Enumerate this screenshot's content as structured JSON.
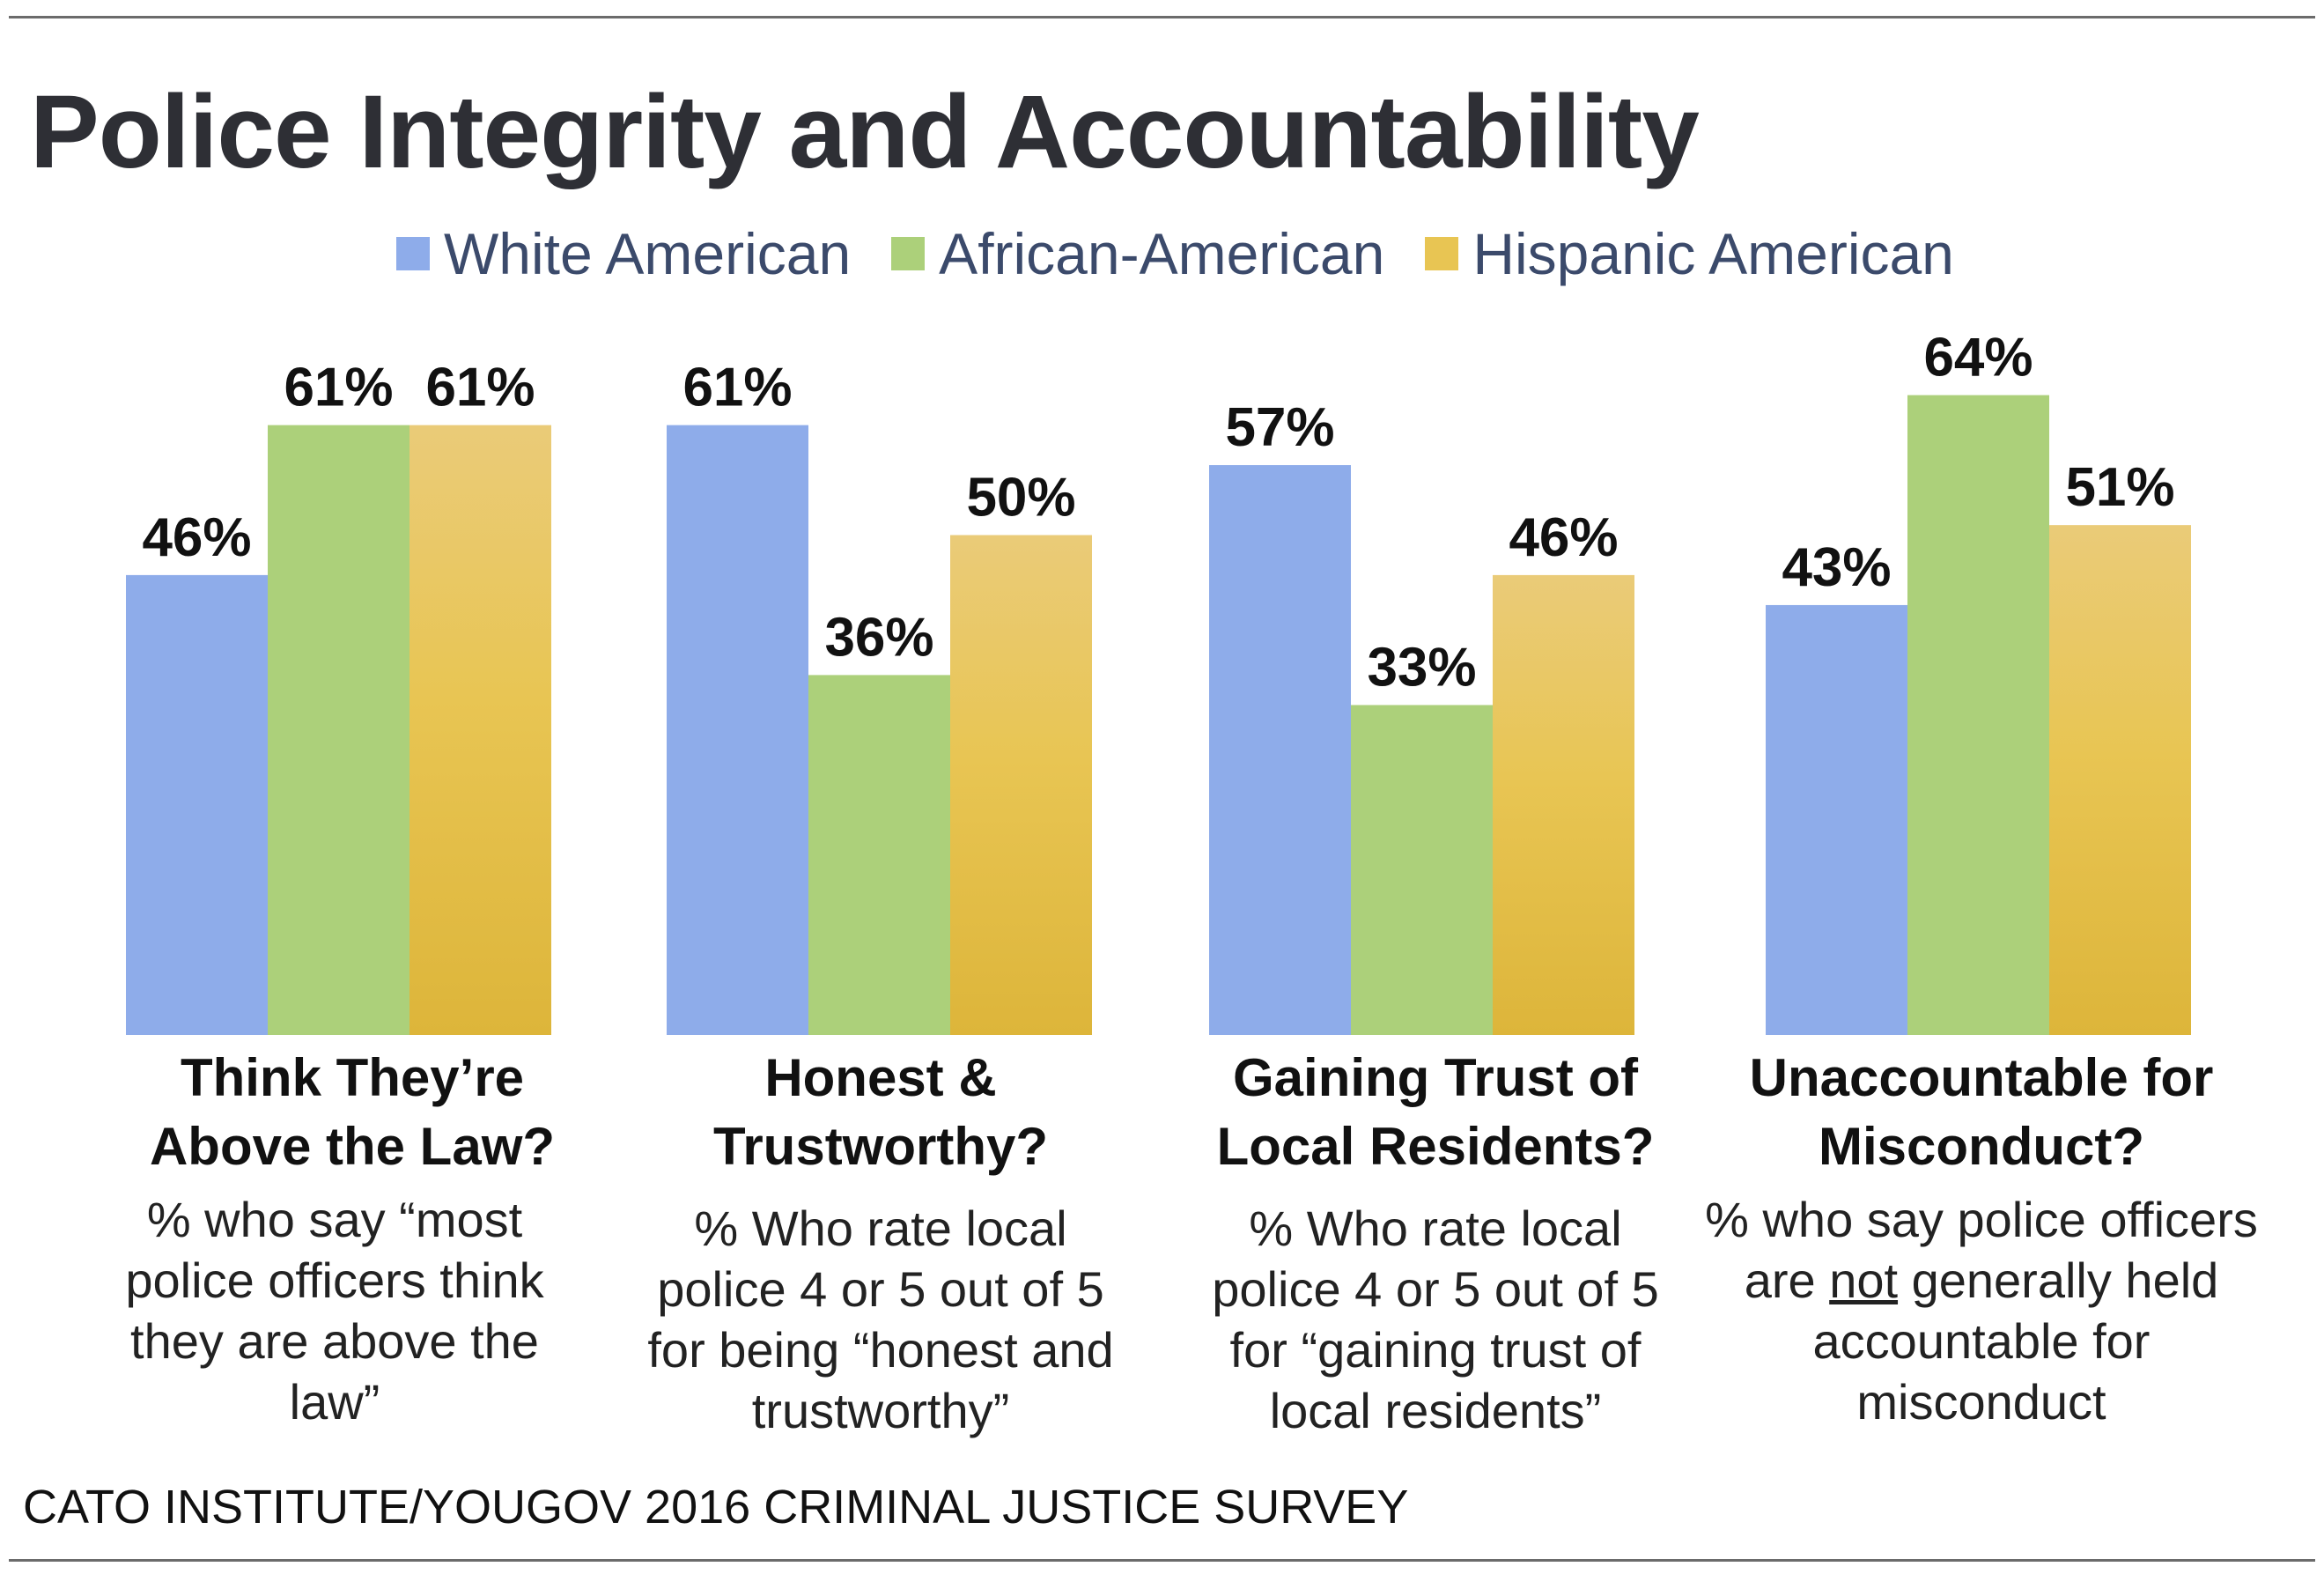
{
  "title": "Police Integrity and Accountability",
  "source": "CATO INSTITUTE/YOUGOV 2016 CRIMINAL JUSTICE SURVEY",
  "colors": {
    "white_american": "#8eacea",
    "african_american": "#acd07a",
    "hispanic_american": "#e8c553",
    "hispanic_gradient_top": "#eacb78",
    "hispanic_gradient_bottom": "#ddb53a"
  },
  "legend": [
    {
      "label": "White American",
      "color": "#8eacea"
    },
    {
      "label": "African-American",
      "color": "#acd07a"
    },
    {
      "label": "Hispanic American",
      "color": "#e8c553"
    }
  ],
  "chart_data": {
    "type": "bar",
    "title": "Police Integrity and Accountability",
    "categories": [
      "Think They're Above the Law?",
      "Honest & Trustworthy?",
      "Gaining Trust of Local Residents?",
      "Unaccountable for Misconduct?"
    ],
    "series": [
      {
        "name": "White American",
        "values": [
          46,
          61,
          57,
          43
        ],
        "labels": [
          "46%",
          "61%",
          "57%",
          "43%"
        ]
      },
      {
        "name": "African-American",
        "values": [
          61,
          36,
          33,
          64
        ],
        "labels": [
          "61%",
          "36%",
          "33%",
          "64%"
        ]
      },
      {
        "name": "Hispanic American",
        "values": [
          61,
          50,
          46,
          51
        ],
        "labels": [
          "61%",
          "50%",
          "46%",
          "51%"
        ]
      }
    ],
    "unit": "%",
    "ylim": [
      0,
      70
    ],
    "grid": false,
    "legend_position": "top-center"
  },
  "groups": [
    {
      "title_lines": [
        "Think They’re",
        "Above the Law?"
      ],
      "note_lines": [
        "% who say “most",
        "police officers think",
        "they are above the",
        "law”"
      ]
    },
    {
      "title_lines": [
        "Honest &",
        "Trustworthy?"
      ],
      "note_lines": [
        "% Who rate local",
        "police 4 or 5 out of 5",
        "for being “honest and",
        "trustworthy”"
      ]
    },
    {
      "title_lines": [
        "Gaining Trust of",
        "Local Residents?"
      ],
      "note_lines": [
        "% Who rate local",
        "police 4 or 5 out of 5",
        "for “gaining trust of",
        "local residents”"
      ]
    },
    {
      "title_lines": [
        "Unaccountable for",
        "Misconduct?"
      ],
      "note_lines": [
        "% who say police officers",
        "are ",
        "not",
        " generally held",
        "accountable for",
        "misconduct"
      ]
    }
  ]
}
